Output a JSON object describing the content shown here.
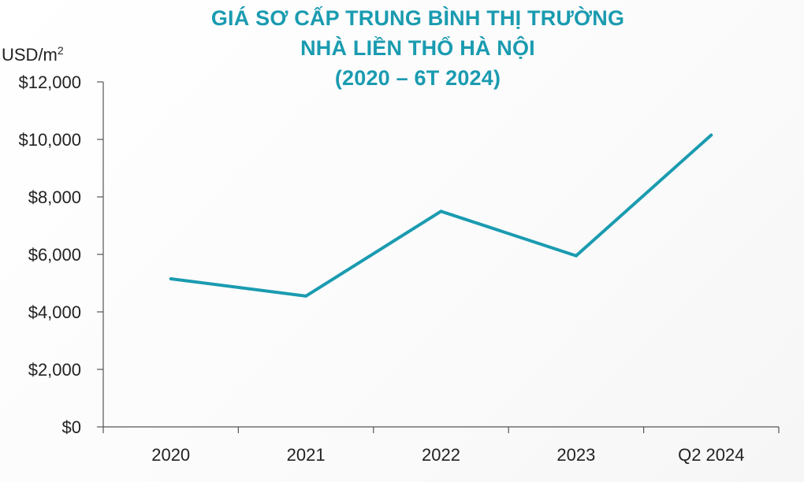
{
  "chart_data": {
    "type": "line",
    "title": [
      "GIÁ SƠ CẤP TRUNG BÌNH THỊ TRƯỜNG",
      "NHÀ LIỀN THỔ HÀ NỘI",
      "(2020 – 6T 2024)"
    ],
    "ylabel_unit": "USD/m",
    "ylabel_unit_sup": "2",
    "categories": [
      "2020",
      "2021",
      "2022",
      "2023",
      "Q2 2024"
    ],
    "values": [
      5150,
      4550,
      7500,
      5950,
      10150
    ],
    "ylim": [
      0,
      12000
    ],
    "yticks": [
      0,
      2000,
      4000,
      6000,
      8000,
      10000,
      12000
    ],
    "ytick_labels": [
      "$0",
      "$2,000",
      "$4,000",
      "$6,000",
      "$8,000",
      "$10,000",
      "$12,000"
    ],
    "grid": false,
    "line_color": "#1a9bb0",
    "title_color": "#1a9bb0"
  }
}
